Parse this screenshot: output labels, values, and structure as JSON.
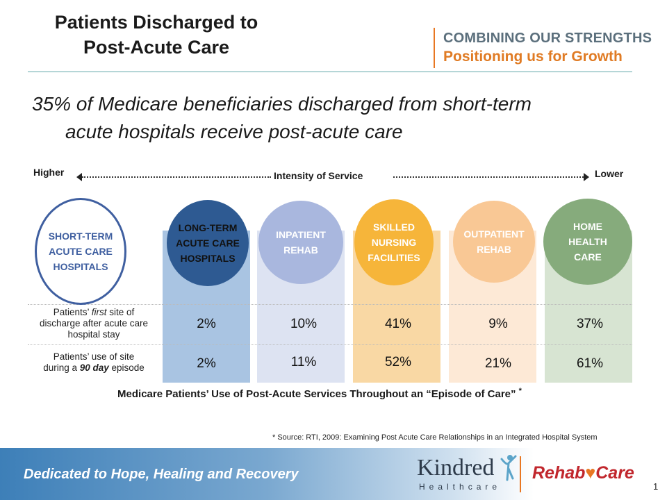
{
  "title": {
    "line1": "Patients Discharged to",
    "line2": "Post-Acute Care"
  },
  "brand": {
    "line1": "COMBINING OUR STRENGTHS",
    "line2": "Positioning us for Growth",
    "accent": "#e87722"
  },
  "headline": {
    "line1": "35% of Medicare beneficiaries discharged from short-term",
    "line2": "acute hospitals receive post-acute care"
  },
  "axis": {
    "left": "Higher",
    "center": "Intensity of Service",
    "right": "Lower"
  },
  "source_circle": {
    "lines": [
      "SHORT-TERM",
      "ACUTE CARE",
      "HOSPITALS"
    ],
    "color": "#3f5fa0"
  },
  "row_labels": {
    "first": {
      "a": "Patients’ ",
      "b": "first",
      "c": " site of",
      "line2": "discharge after acute care",
      "line3": "hospital stay"
    },
    "ninety": {
      "line1": "Patients’ use of site",
      "a": "during a ",
      "b": "90 day",
      "c": " episode"
    }
  },
  "categories": [
    {
      "lines": [
        "LONG-TERM",
        "ACUTE CARE",
        "HOSPITALS"
      ],
      "circle": "#2e5a92",
      "circle_text": "#111111",
      "band": "#a9c4e2",
      "first": "2%",
      "ninety": "2%"
    },
    {
      "lines": [
        "INPATIENT",
        "REHAB"
      ],
      "circle": "#a9b7de",
      "circle_text": "#ffffff",
      "band": "#dde3f2",
      "first": "10%",
      "ninety": "11%"
    },
    {
      "lines": [
        "SKILLED",
        "NURSING",
        "FACILITIES"
      ],
      "circle": "#f6b53a",
      "circle_text": "#ffffff",
      "band": "#f9d8a4",
      "first": "41%",
      "ninety": "52%"
    },
    {
      "lines": [
        "OUTPATIENT",
        "REHAB"
      ],
      "circle": "#f9c895",
      "circle_text": "#ffffff",
      "band": "#fde9d6",
      "first": "9%",
      "ninety": "21%"
    },
    {
      "lines": [
        "HOME",
        "HEALTH",
        "CARE"
      ],
      "circle": "#86ab7c",
      "circle_text": "#ffffff",
      "band": "#d7e4d2",
      "first": "37%",
      "ninety": "61%"
    }
  ],
  "caption": {
    "text": "Medicare Patients’ Use of Post-Acute Services Throughout an “Episode of Care”",
    "star": "*"
  },
  "source_note": "* Source: RTI, 2009: Examining Post Acute Care Relationships in an Integrated Hospital System",
  "footer": {
    "tagline": "Dedicated to Hope, Healing and Recovery",
    "kindred": "Kindred",
    "kindred_sub": "Healthcare",
    "rehab": "Rehab",
    "care": "Care",
    "page": "1"
  }
}
